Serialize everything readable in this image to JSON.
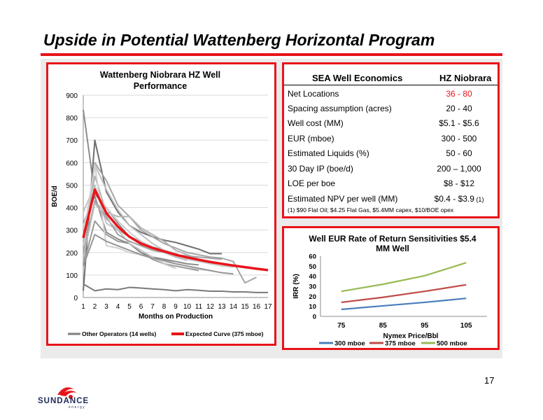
{
  "slide": {
    "title": "Upside in Potential  Wattenberg Horizontal Program",
    "page_number": "17",
    "logo_text": "SUNDANCE",
    "logo_subtext": "energy"
  },
  "well_table": {
    "header_left": "SEA Well Economics",
    "header_right": "HZ Niobrara",
    "rows": [
      {
        "label": "Net Locations",
        "value": "36 - 80",
        "suffix": "",
        "highlight": true
      },
      {
        "label": "Spacing assumption (acres)",
        "value": "20 - 40",
        "suffix": "",
        "highlight": false
      },
      {
        "label": "Well cost (MM)",
        "value": "$5.1 - $5.6",
        "suffix": "",
        "highlight": false
      },
      {
        "label": "EUR (mboe)",
        "value": "300 - 500",
        "suffix": "",
        "highlight": false
      },
      {
        "label": "Estimated Liquids (%)",
        "value": "50 - 60",
        "suffix": "",
        "highlight": false
      },
      {
        "label": "30 Day IP (boe/d)",
        "value": "200 – 1,000",
        "suffix": "",
        "highlight": false
      },
      {
        "label": "LOE per boe",
        "value": "$8 - $12",
        "suffix": "",
        "highlight": false
      },
      {
        "label": "Estimated NPV per well (MM)",
        "value": "$0.4 - $3.9",
        "suffix": "(1)",
        "highlight": false
      }
    ],
    "footnote": "(1) $90 Flat Oil; $4.25 Flat Gas, $5.4MM capex, $10/BOE opex",
    "highlight_color": "#e8141a"
  },
  "chart_data": [
    {
      "type": "line",
      "title": "Wattenberg Niobrara HZ Well Performance",
      "xlabel": "Months on Production",
      "ylabel": "BOE/d",
      "ylim": [
        0,
        900
      ],
      "xlim": [
        1,
        17
      ],
      "categories": [
        1,
        2,
        3,
        4,
        5,
        6,
        7,
        8,
        9,
        10,
        11,
        12,
        13,
        14,
        15,
        16,
        17
      ],
      "y_ticks": [
        0,
        100,
        200,
        300,
        400,
        500,
        600,
        700,
        800,
        900
      ],
      "grid": true,
      "legend": "bottom",
      "legend_entries": [
        {
          "name": "Other Operators (14 wells)",
          "color": "#7f7f7f"
        },
        {
          "name": "Expected Curve (375 mboe)",
          "color": "#e8141a"
        }
      ],
      "series": [
        {
          "group": "other",
          "color": "#8c8c8c",
          "x": [
            1,
            2,
            3,
            4,
            5,
            6,
            7,
            8,
            9,
            10,
            11,
            12,
            13
          ],
          "values": [
            835,
            460,
            400,
            330,
            270,
            235,
            225,
            210,
            195,
            175,
            160,
            155,
            150
          ]
        },
        {
          "group": "other",
          "color": "#6e6e6e",
          "x": [
            1,
            2,
            3,
            4,
            5,
            6,
            7,
            8,
            9,
            10,
            11,
            12,
            13
          ],
          "values": [
            30,
            700,
            470,
            380,
            320,
            290,
            270,
            255,
            245,
            230,
            215,
            195,
            195
          ]
        },
        {
          "group": "other",
          "color": "#a6a6a6",
          "x": [
            1,
            2,
            3,
            4,
            5,
            6,
            7,
            8,
            9,
            10,
            11,
            12,
            13,
            14,
            15,
            16
          ],
          "values": [
            150,
            600,
            520,
            410,
            360,
            300,
            270,
            240,
            220,
            200,
            190,
            180,
            175,
            160,
            65,
            90
          ]
        },
        {
          "group": "other",
          "color": "#bfbfbf",
          "x": [
            1,
            2,
            3,
            4,
            5,
            6,
            7,
            8,
            9
          ],
          "values": [
            230,
            590,
            480,
            390,
            320,
            280,
            240,
            210,
            195
          ]
        },
        {
          "group": "other",
          "color": "#999999",
          "x": [
            1,
            2,
            3,
            4,
            5,
            6,
            7,
            8,
            9,
            10,
            11
          ],
          "values": [
            140,
            340,
            280,
            250,
            240,
            200,
            170,
            150,
            140,
            130,
            120
          ]
        },
        {
          "group": "other",
          "color": "#b3b3b3",
          "x": [
            1,
            2,
            3,
            4,
            5,
            6,
            7,
            8,
            9,
            10,
            11,
            12
          ],
          "values": [
            250,
            540,
            380,
            360,
            360,
            310,
            280,
            250,
            210,
            190,
            170,
            160
          ]
        },
        {
          "group": "other",
          "color": "#8a8a8a",
          "x": [
            1,
            2,
            3,
            4,
            5,
            6,
            7,
            8,
            9,
            10,
            11
          ],
          "values": [
            330,
            450,
            290,
            260,
            240,
            200,
            180,
            170,
            160,
            150,
            145
          ]
        },
        {
          "group": "other",
          "color": "#c4c4c4",
          "x": [
            1,
            2,
            3,
            4,
            5,
            6,
            7,
            8,
            9
          ],
          "values": [
            380,
            500,
            330,
            300,
            240,
            210,
            180,
            150,
            130
          ]
        },
        {
          "group": "other",
          "color": "#7a7a7a",
          "x": [
            1,
            2,
            3,
            4,
            5,
            6,
            7,
            8,
            9,
            10,
            11,
            12,
            13,
            14,
            15,
            16,
            17
          ],
          "values": [
            60,
            30,
            38,
            35,
            45,
            42,
            38,
            35,
            30,
            35,
            32,
            28,
            28,
            25,
            25,
            22,
            22
          ]
        },
        {
          "group": "other",
          "color": "#a0a0a0",
          "x": [
            1,
            2,
            3,
            4,
            5,
            6,
            7,
            8,
            9,
            10,
            11,
            12,
            13
          ],
          "values": [
            200,
            430,
            360,
            280,
            250,
            230,
            210,
            200,
            190,
            185,
            180,
            175,
            170
          ]
        },
        {
          "group": "other",
          "color": "#d0d0d0",
          "x": [
            1,
            2,
            3,
            4,
            5,
            6,
            7,
            8,
            9,
            10,
            11,
            12
          ],
          "values": [
            270,
            590,
            230,
            220,
            200,
            190,
            175,
            160,
            150,
            140,
            125,
            120
          ]
        },
        {
          "group": "other",
          "color": "#b8b8b8",
          "x": [
            1,
            2,
            3,
            4,
            5,
            6,
            7,
            8,
            9,
            10
          ],
          "values": [
            180,
            420,
            350,
            300,
            270,
            250,
            225,
            200,
            180,
            165
          ]
        },
        {
          "group": "other",
          "color": "#959595",
          "x": [
            1,
            2,
            3,
            4,
            5,
            6,
            7,
            8,
            9,
            10,
            11,
            12,
            13,
            14
          ],
          "values": [
            140,
            280,
            250,
            230,
            210,
            190,
            175,
            165,
            150,
            140,
            130,
            120,
            110,
            105
          ]
        },
        {
          "group": "other",
          "color": "#cccccc",
          "x": [
            1,
            2,
            3,
            4,
            5,
            6,
            7,
            8,
            9,
            10,
            11,
            12,
            13,
            14
          ],
          "values": [
            320,
            470,
            400,
            340,
            290,
            250,
            220,
            200,
            185,
            170,
            160,
            150,
            140,
            135
          ]
        },
        {
          "group": "expected",
          "name": "Expected Curve (375 mboe)",
          "color": "#e8141a",
          "x": [
            1,
            2,
            3,
            4,
            5,
            6,
            7,
            8,
            9,
            10,
            11,
            12,
            13,
            14,
            15,
            16,
            17
          ],
          "values": [
            265,
            480,
            375,
            315,
            270,
            240,
            220,
            205,
            190,
            178,
            168,
            158,
            150,
            142,
            135,
            128,
            122
          ]
        }
      ]
    },
    {
      "type": "line",
      "title": "Well EUR Rate of Return Sensitivities $5.4 MM Well",
      "xlabel": "Nymex Price/Bbl",
      "ylabel": "IRR (%)",
      "ylim": [
        0,
        60
      ],
      "categories": [
        "75",
        "85",
        "95",
        "105"
      ],
      "y_ticks": [
        0,
        10,
        20,
        30,
        40,
        50,
        60
      ],
      "grid": false,
      "legend": "bottom",
      "series": [
        {
          "name": "300 mboe",
          "color": "#4a7ebb",
          "values": [
            7,
            10.5,
            14,
            18
          ]
        },
        {
          "name": "375 mboe",
          "color": "#be4b48",
          "values": [
            14,
            19,
            25,
            31.5
          ]
        },
        {
          "name": "500 mboe",
          "color": "#98b954",
          "values": [
            25,
            32,
            40.5,
            53.5
          ]
        }
      ]
    }
  ]
}
